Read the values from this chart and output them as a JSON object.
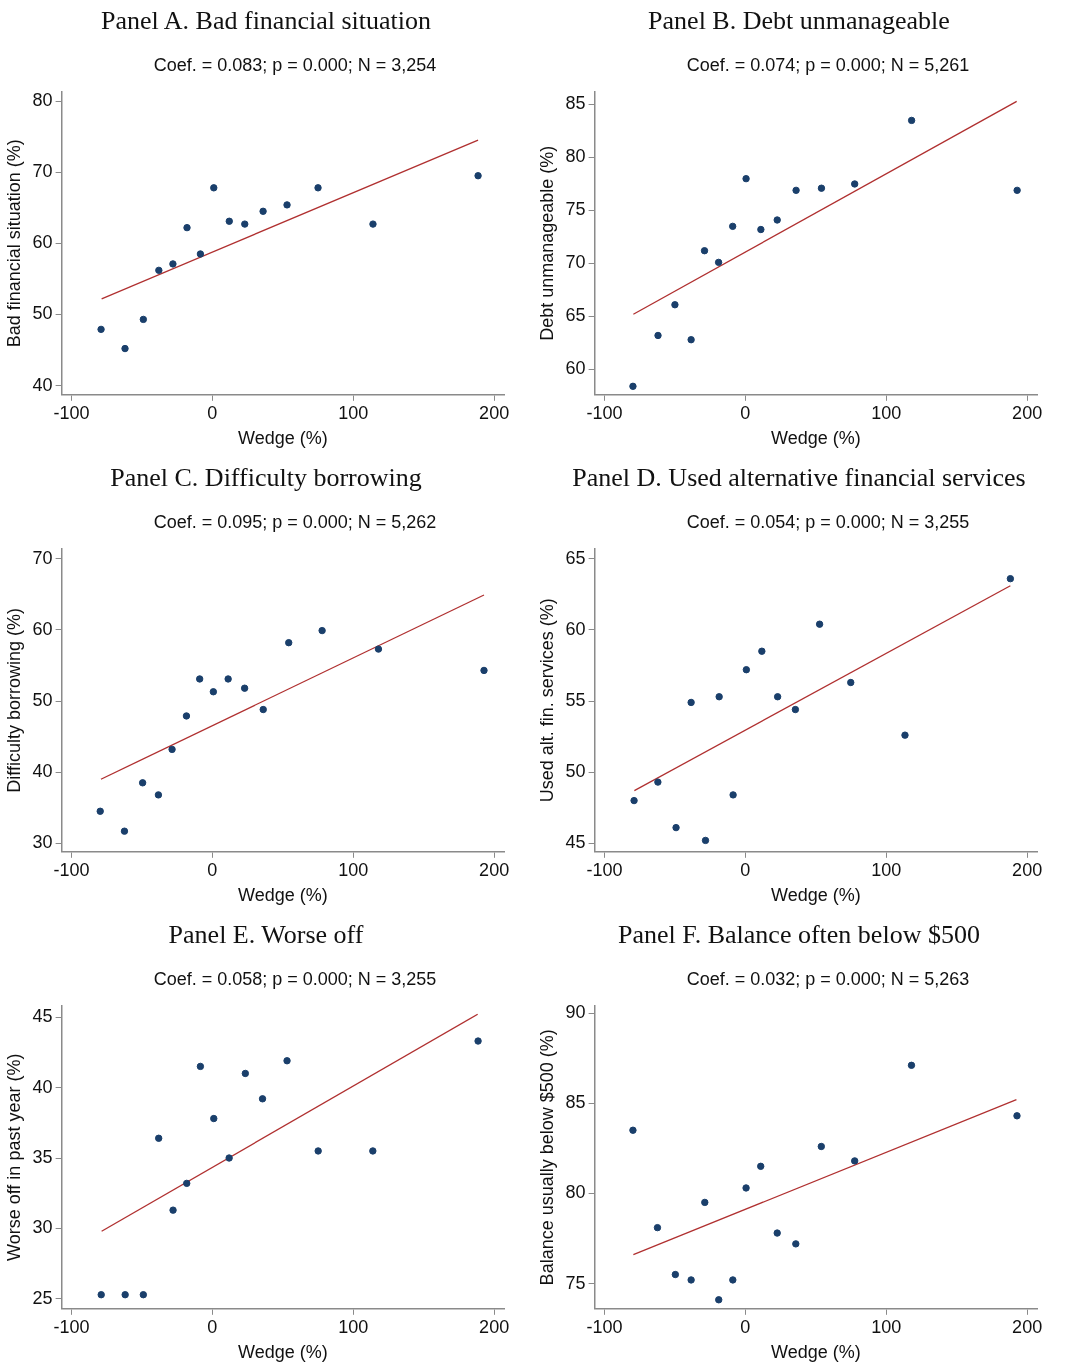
{
  "chart_data": [
    {
      "type": "scatter",
      "title": "Panel A. Bad financial situation",
      "subtitle": "Coef. = 0.083; p = 0.000; N = 3,254",
      "xlabel": "Wedge (%)",
      "ylabel": "Bad financial situation (%)",
      "xlim": [
        -107,
        207
      ],
      "ylim": [
        38.7,
        81.3
      ],
      "xticks": [
        -100,
        0,
        100,
        200
      ],
      "yticks": [
        40,
        50,
        60,
        70,
        80
      ],
      "series": [
        {
          "marker": "circle",
          "color": "#1a3f6b",
          "x": [
            -79,
            -62,
            -49,
            -38,
            -28,
            -18,
            -8.5,
            1,
            12,
            23,
            36,
            53,
            75,
            114,
            188.6
          ],
          "values": [
            47.9,
            45.2,
            49.3,
            56.2,
            57.1,
            62.2,
            58.5,
            67.8,
            63.1,
            62.7,
            64.5,
            65.4,
            67.8,
            62.7,
            69.5
          ]
        },
        {
          "type": "line",
          "marker": "none",
          "color": "#b03030",
          "x": [
            -78.6,
            188.6
          ],
          "values": [
            52.2,
            74.5
          ]
        }
      ]
    },
    {
      "type": "scatter",
      "title": "Panel B. Debt unmanageable",
      "subtitle": "Coef. = 0.074; p = 0.000; N = 5,261",
      "xlabel": "Wedge (%)",
      "ylabel": "Debt unmanageable (%)",
      "xlim": [
        -107,
        207
      ],
      "ylim": [
        57.6,
        86.2
      ],
      "xticks": [
        -100,
        0,
        100,
        200
      ],
      "yticks": [
        60,
        65,
        70,
        75,
        80,
        85
      ],
      "series": [
        {
          "marker": "circle",
          "color": "#1a3f6b",
          "x": [
            -79.8,
            -62,
            -50,
            -38.5,
            -29,
            -19,
            -9,
            0.5,
            11,
            22.6,
            36,
            54,
            77.6,
            118,
            192.9
          ],
          "values": [
            58.4,
            63.2,
            66.1,
            62.8,
            71.2,
            70.1,
            73.5,
            78.0,
            73.2,
            74.1,
            76.9,
            77.1,
            77.5,
            83.5,
            76.9
          ]
        },
        {
          "type": "line",
          "marker": "none",
          "color": "#b03030",
          "x": [
            -79.5,
            192.6
          ],
          "values": [
            65.2,
            85.3
          ]
        }
      ]
    },
    {
      "type": "scatter",
      "title": "Panel C. Difficulty borrowing",
      "subtitle": "Coef. = 0.095; p = 0.000; N = 5,262",
      "xlabel": "Wedge (%)",
      "ylabel": "Difficulty borrowing (%)",
      "xlim": [
        -107,
        207
      ],
      "ylim": [
        28.8,
        71.4
      ],
      "xticks": [
        -100,
        0,
        100,
        200
      ],
      "yticks": [
        30,
        40,
        50,
        60,
        70
      ],
      "series": [
        {
          "marker": "circle",
          "color": "#1a3f6b",
          "x": [
            -79.6,
            -62.4,
            -49.5,
            -38.3,
            -28.6,
            -18.4,
            -9,
            0.7,
            11.2,
            22.9,
            36.1,
            54.2,
            77.9,
            117.9,
            192.8
          ],
          "values": [
            34.5,
            31.7,
            38.5,
            36.8,
            43.2,
            47.9,
            53.1,
            51.3,
            53.1,
            51.8,
            48.8,
            58.2,
            59.9,
            57.3,
            54.3
          ]
        },
        {
          "type": "line",
          "marker": "none",
          "color": "#b03030",
          "x": [
            -79.1,
            192.8
          ],
          "values": [
            39.0,
            64.9
          ]
        }
      ]
    },
    {
      "type": "scatter",
      "title": "Panel D. Used alternative financial services",
      "subtitle": "Coef. = 0.054; p = 0.000; N = 3,255",
      "xlabel": "Wedge (%)",
      "ylabel": "Used alt. fin. services (%)",
      "xlim": [
        -107,
        207
      ],
      "ylim": [
        44.4,
        65.7
      ],
      "xticks": [
        -100,
        0,
        100,
        200
      ],
      "yticks": [
        45,
        50,
        55,
        60,
        65
      ],
      "series": [
        {
          "marker": "circle",
          "color": "#1a3f6b",
          "x": [
            -79,
            -62.1,
            -49.2,
            -38.5,
            -28.3,
            -18.6,
            -8.7,
            0.7,
            11.7,
            22.9,
            35.5,
            52.7,
            74.8,
            113.3,
            188.1
          ],
          "values": [
            48.0,
            49.3,
            46.1,
            54.9,
            45.2,
            55.3,
            48.4,
            57.2,
            58.5,
            55.3,
            54.4,
            60.4,
            56.3,
            52.6,
            63.6
          ]
        },
        {
          "type": "line",
          "marker": "none",
          "color": "#b03030",
          "x": [
            -78.8,
            188.1
          ],
          "values": [
            48.7,
            63.1
          ]
        }
      ]
    },
    {
      "type": "scatter",
      "title": "Panel E. Worse off",
      "subtitle": "Coef. = 0.058; p = 0.000; N = 3,255",
      "xlabel": "Wedge (%)",
      "ylabel": "Worse off in past year (%)",
      "xlim": [
        -107,
        207
      ],
      "ylim": [
        24.3,
        45.8
      ],
      "xticks": [
        -100,
        0,
        100,
        200
      ],
      "yticks": [
        25,
        30,
        35,
        40,
        45
      ],
      "series": [
        {
          "marker": "circle",
          "color": "#1a3f6b",
          "x": [
            -78.9,
            -61.9,
            -49,
            -38.1,
            -27.9,
            -18.2,
            -8.5,
            1,
            11.9,
            23.4,
            35.6,
            53,
            75.1,
            113.9,
            188.6
          ],
          "values": [
            25.3,
            25.3,
            25.3,
            36.4,
            31.3,
            33.2,
            41.5,
            37.8,
            35.0,
            41.0,
            39.2,
            41.9,
            35.5,
            35.5,
            43.3
          ]
        },
        {
          "type": "line",
          "marker": "none",
          "color": "#b03030",
          "x": [
            -78.6,
            188.3
          ],
          "values": [
            29.8,
            45.2
          ]
        }
      ]
    },
    {
      "type": "scatter",
      "title": "Panel F. Balance often below $500",
      "subtitle": "Coef. = 0.032; p = 0.000; N = 5,263",
      "xlabel": "Wedge (%)",
      "ylabel": "Balance usually below $500 (%)",
      "xlim": [
        -107,
        207
      ],
      "ylim": [
        73.6,
        90.4
      ],
      "xticks": [
        -100,
        0,
        100,
        200
      ],
      "yticks": [
        75,
        80,
        85,
        90
      ],
      "series": [
        {
          "marker": "circle",
          "color": "#1a3f6b",
          "x": [
            -79.8,
            -62.4,
            -49.7,
            -38.5,
            -28.8,
            -18.9,
            -8.9,
            0.5,
            10.9,
            22.6,
            35.8,
            53.9,
            77.6,
            117.9,
            192.8
          ],
          "values": [
            83.5,
            78.1,
            75.5,
            75.2,
            79.5,
            74.1,
            75.2,
            80.3,
            81.5,
            77.8,
            77.2,
            82.6,
            81.8,
            87.1,
            84.3
          ]
        },
        {
          "type": "line",
          "marker": "none",
          "color": "#b03030",
          "x": [
            -79.5,
            192.4
          ],
          "values": [
            76.6,
            85.2
          ]
        }
      ]
    }
  ]
}
